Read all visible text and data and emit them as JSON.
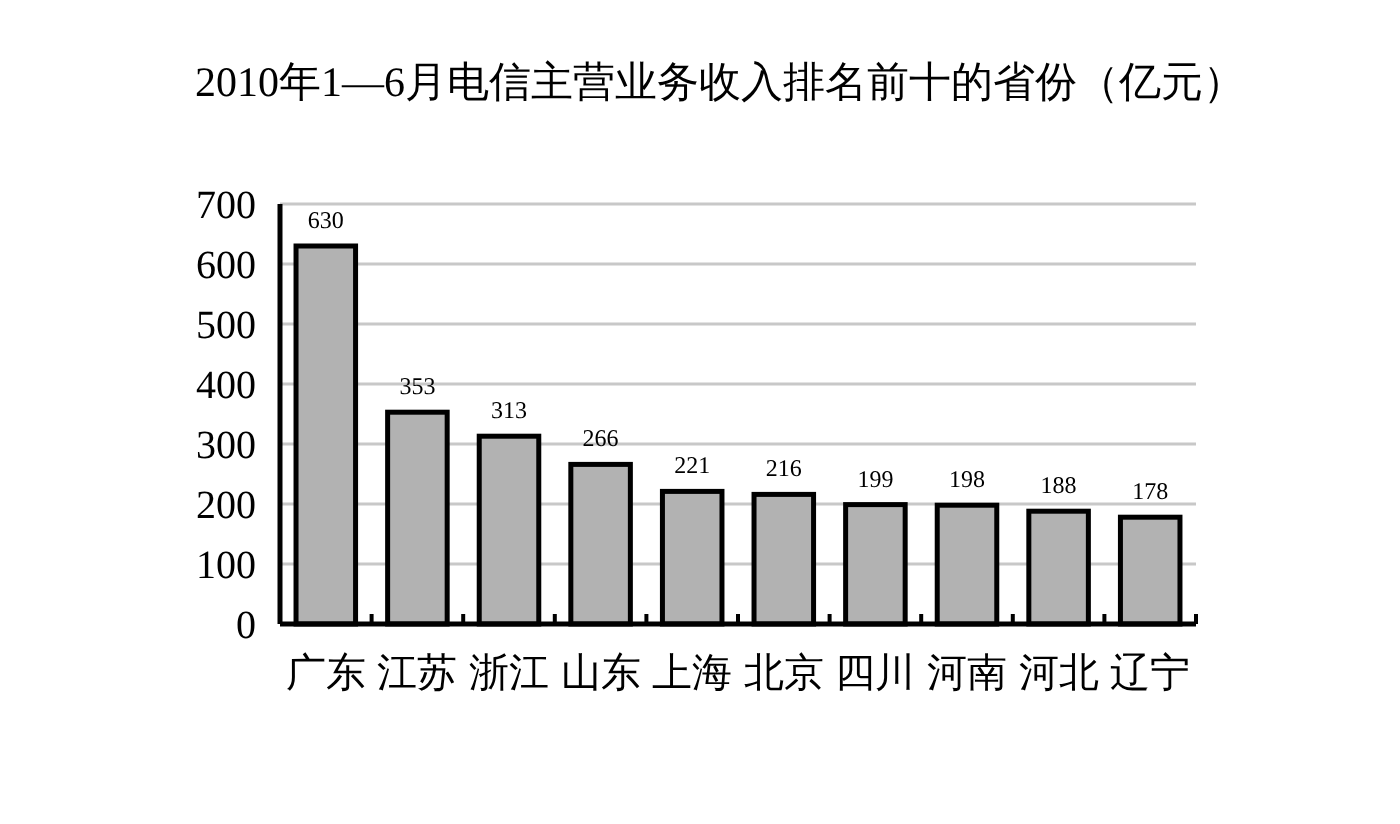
{
  "chart_data": {
    "type": "bar",
    "title": "2010年1—6月电信主营业务收入排名前十的省份（亿元）",
    "categories": [
      "广东",
      "江苏",
      "浙江",
      "山东",
      "上海",
      "北京",
      "四川",
      "河南",
      "河北",
      "辽宁"
    ],
    "values": [
      630,
      353,
      313,
      266,
      221,
      216,
      199,
      198,
      188,
      178
    ],
    "color": "#b2b2b2",
    "ylim": [
      0,
      700
    ],
    "yticks": [
      0,
      100,
      200,
      300,
      400,
      500,
      600,
      700
    ],
    "grid": "y",
    "data_labels": true
  }
}
